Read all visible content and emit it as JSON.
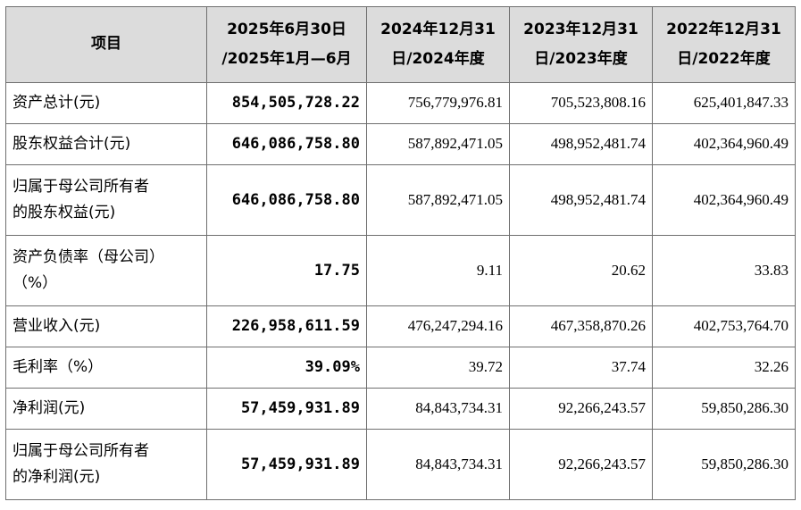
{
  "header": {
    "item": "项目",
    "periods": [
      [
        "2025年6月30日",
        "/2025年1月—6月"
      ],
      [
        "2024年12月31",
        "日/2024年度"
      ],
      [
        "2023年12月31",
        "日/2023年度"
      ],
      [
        "2022年12月31",
        "日/2022年度"
      ]
    ]
  },
  "rows": [
    {
      "label": [
        "资产总计(元)"
      ],
      "values": [
        "854,505,728.22",
        "756,779,976.81",
        "705,523,808.16",
        "625,401,847.33"
      ]
    },
    {
      "label": [
        "股东权益合计(元)"
      ],
      "values": [
        "646,086,758.80",
        "587,892,471.05",
        "498,952,481.74",
        "402,364,960.49"
      ]
    },
    {
      "label": [
        "归属于母公司所有者",
        "的股东权益(元)"
      ],
      "values": [
        "646,086,758.80",
        "587,892,471.05",
        "498,952,481.74",
        "402,364,960.49"
      ]
    },
    {
      "label": [
        "资产负债率（母公司）",
        "（%）"
      ],
      "values": [
        "17.75",
        "9.11",
        "20.62",
        "33.83"
      ]
    },
    {
      "label": [
        "营业收入(元)"
      ],
      "values": [
        "226,958,611.59",
        "476,247,294.16",
        "467,358,870.26",
        "402,753,764.70"
      ]
    },
    {
      "label": [
        "毛利率（%）"
      ],
      "values": [
        "39.09%",
        "39.72",
        "37.74",
        "32.26"
      ]
    },
    {
      "label": [
        "净利润(元)"
      ],
      "values": [
        "57,459,931.89",
        "84,843,734.31",
        "92,266,243.57",
        "59,850,286.30"
      ]
    },
    {
      "label": [
        "归属于母公司所有者",
        "的净利润(元)"
      ],
      "values": [
        "57,459,931.89",
        "84,843,734.31",
        "92,266,243.57",
        "59,850,286.30"
      ]
    }
  ]
}
